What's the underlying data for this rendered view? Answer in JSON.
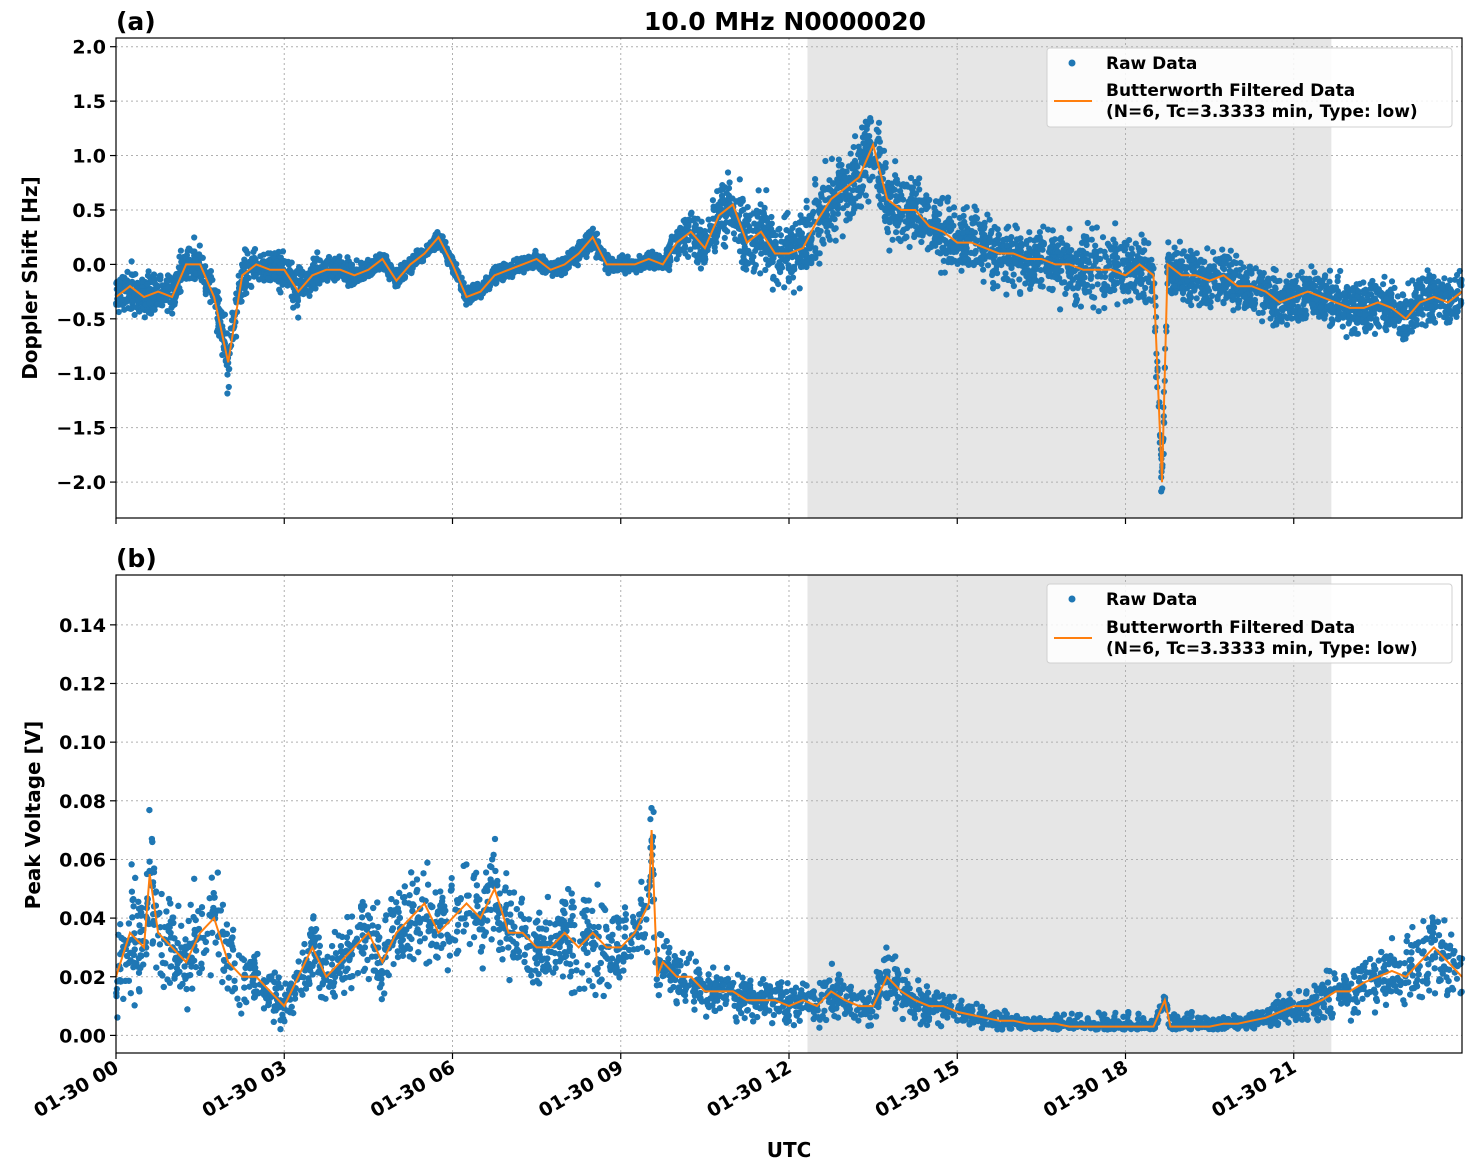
{
  "title": "10.0 MHz N0000020",
  "colors": {
    "raw": "#1f77b4",
    "filtered": "#ff7f0e",
    "shade": "#e6e6e6",
    "grid": "#b0b0b0"
  },
  "legend": {
    "raw_label": "Raw Data",
    "filtered_label_line1": "Butterworth Filtered Data",
    "filtered_label_line2": "(N=6, Tc=3.3333 min, Type: low)"
  },
  "chart_data": [
    {
      "type": "scatter",
      "panel_label": "(a)",
      "ylabel": "Doppler Shift [Hz]",
      "xlabel": "",
      "xlim": [
        0,
        24
      ],
      "ylim": [
        -2.33,
        2.08
      ],
      "yticks": [
        -2.0,
        -1.5,
        -1.0,
        -0.5,
        0.0,
        0.5,
        1.0,
        1.5,
        2.0
      ],
      "ytick_labels": [
        "−2.0",
        "−1.5",
        "−1.0",
        "−0.5",
        "0.0",
        "0.5",
        "1.0",
        "1.5",
        "2.0"
      ],
      "shaded_region": [
        12.33,
        21.67
      ],
      "grid": true,
      "legend_position": "top-right",
      "series": [
        {
          "name": "Butterworth Filtered Data",
          "style": "line",
          "x": [
            0,
            0.25,
            0.5,
            0.75,
            1,
            1.25,
            1.5,
            1.75,
            2,
            2.25,
            2.5,
            2.75,
            3,
            3.25,
            3.5,
            3.75,
            4,
            4.25,
            4.5,
            4.75,
            5,
            5.25,
            5.5,
            5.75,
            6,
            6.25,
            6.5,
            6.75,
            7,
            7.25,
            7.5,
            7.75,
            8,
            8.25,
            8.5,
            8.75,
            9,
            9.25,
            9.5,
            9.75,
            10,
            10.25,
            10.5,
            10.75,
            11,
            11.25,
            11.5,
            11.75,
            12,
            12.25,
            12.5,
            12.75,
            13,
            13.25,
            13.5,
            13.75,
            14,
            14.25,
            14.5,
            14.75,
            15,
            15.25,
            15.5,
            15.75,
            16,
            16.25,
            16.5,
            16.75,
            17,
            17.25,
            17.5,
            17.75,
            18,
            18.25,
            18.5,
            18.65,
            18.75,
            19,
            19.25,
            19.5,
            19.75,
            20,
            20.25,
            20.5,
            20.75,
            21,
            21.25,
            21.5,
            21.75,
            22,
            22.25,
            22.5,
            22.75,
            23,
            23.25,
            23.5,
            23.75,
            24
          ],
          "y": [
            -0.3,
            -0.2,
            -0.3,
            -0.25,
            -0.3,
            0.0,
            0.0,
            -0.3,
            -0.9,
            -0.1,
            0.0,
            -0.05,
            -0.05,
            -0.25,
            -0.1,
            -0.05,
            -0.05,
            -0.1,
            -0.05,
            0.05,
            -0.15,
            0.0,
            0.1,
            0.25,
            0.0,
            -0.3,
            -0.25,
            -0.1,
            -0.05,
            0.0,
            0.05,
            -0.05,
            0.0,
            0.1,
            0.25,
            0.0,
            0.0,
            0.0,
            0.05,
            0.0,
            0.2,
            0.3,
            0.15,
            0.45,
            0.55,
            0.2,
            0.3,
            0.1,
            0.1,
            0.15,
            0.4,
            0.6,
            0.7,
            0.8,
            1.1,
            0.6,
            0.5,
            0.5,
            0.35,
            0.3,
            0.2,
            0.2,
            0.15,
            0.1,
            0.1,
            0.05,
            0.05,
            0.0,
            0.0,
            -0.05,
            -0.05,
            -0.05,
            -0.1,
            0.0,
            -0.1,
            -2.0,
            0.0,
            -0.1,
            -0.1,
            -0.15,
            -0.1,
            -0.2,
            -0.2,
            -0.25,
            -0.35,
            -0.3,
            -0.25,
            -0.3,
            -0.35,
            -0.4,
            -0.4,
            -0.35,
            -0.4,
            -0.5,
            -0.35,
            -0.3,
            -0.35,
            -0.25
          ]
        },
        {
          "name": "Raw Data",
          "style": "points",
          "spread": [
            0.25,
            0.25,
            0.25,
            0.25,
            0.25,
            0.25,
            0.25,
            0.25,
            0.4,
            0.25,
            0.2,
            0.2,
            0.25,
            0.3,
            0.2,
            0.15,
            0.15,
            0.15,
            0.12,
            0.12,
            0.12,
            0.1,
            0.1,
            0.1,
            0.1,
            0.1,
            0.1,
            0.1,
            0.1,
            0.1,
            0.1,
            0.1,
            0.1,
            0.1,
            0.15,
            0.1,
            0.1,
            0.1,
            0.1,
            0.1,
            0.2,
            0.25,
            0.3,
            0.35,
            0.4,
            0.45,
            0.45,
            0.4,
            0.4,
            0.45,
            0.45,
            0.45,
            0.45,
            0.5,
            0.5,
            0.45,
            0.45,
            0.4,
            0.4,
            0.4,
            0.4,
            0.4,
            0.4,
            0.4,
            0.4,
            0.4,
            0.4,
            0.4,
            0.4,
            0.45,
            0.45,
            0.45,
            0.45,
            0.4,
            0.4,
            0.4,
            0.4,
            0.35,
            0.35,
            0.35,
            0.35,
            0.3,
            0.3,
            0.3,
            0.3,
            0.3,
            0.3,
            0.3,
            0.3,
            0.35,
            0.35,
            0.35,
            0.35,
            0.35,
            0.3,
            0.3,
            0.3,
            0.3
          ]
        }
      ]
    },
    {
      "type": "scatter",
      "panel_label": "(b)",
      "ylabel": "Peak Voltage [V]",
      "xlabel": "UTC",
      "xlim": [
        0,
        24
      ],
      "ylim": [
        -0.006,
        0.157
      ],
      "yticks": [
        0.0,
        0.02,
        0.04,
        0.06,
        0.08,
        0.1,
        0.12,
        0.14
      ],
      "ytick_labels": [
        "0.00",
        "0.02",
        "0.04",
        "0.06",
        "0.08",
        "0.10",
        "0.12",
        "0.14"
      ],
      "xticks": [
        0,
        3,
        6,
        9,
        12,
        15,
        18,
        21
      ],
      "xtick_labels": [
        "01-30 00",
        "01-30 03",
        "01-30 06",
        "01-30 09",
        "01-30 12",
        "01-30 15",
        "01-30 18",
        "01-30 21"
      ],
      "shaded_region": [
        12.33,
        21.67
      ],
      "grid": true,
      "legend_position": "top-right",
      "series": [
        {
          "name": "Butterworth Filtered Data",
          "style": "line",
          "x": [
            0,
            0.25,
            0.5,
            0.6,
            0.75,
            1,
            1.25,
            1.5,
            1.75,
            2,
            2.25,
            2.5,
            2.75,
            3,
            3.25,
            3.5,
            3.75,
            4,
            4.25,
            4.5,
            4.75,
            5,
            5.25,
            5.5,
            5.75,
            6,
            6.25,
            6.5,
            6.75,
            7,
            7.25,
            7.5,
            7.75,
            8,
            8.25,
            8.5,
            8.75,
            9,
            9.25,
            9.5,
            9.55,
            9.65,
            9.75,
            10,
            10.25,
            10.5,
            10.75,
            11,
            11.25,
            11.5,
            11.75,
            12,
            12.25,
            12.5,
            12.75,
            13,
            13.25,
            13.5,
            13.75,
            14,
            14.25,
            14.5,
            14.75,
            15,
            15.25,
            15.5,
            15.75,
            16,
            16.25,
            16.5,
            16.75,
            17,
            17.25,
            17.5,
            17.75,
            18,
            18.25,
            18.5,
            18.7,
            18.8,
            19,
            19.25,
            19.5,
            19.75,
            20,
            20.25,
            20.5,
            20.75,
            21,
            21.25,
            21.5,
            21.75,
            22,
            22.25,
            22.5,
            22.75,
            23,
            23.25,
            23.5,
            23.75,
            24
          ],
          "y": [
            0.02,
            0.035,
            0.03,
            0.055,
            0.035,
            0.03,
            0.025,
            0.035,
            0.04,
            0.025,
            0.02,
            0.02,
            0.015,
            0.01,
            0.02,
            0.03,
            0.02,
            0.025,
            0.03,
            0.035,
            0.025,
            0.035,
            0.04,
            0.045,
            0.035,
            0.04,
            0.045,
            0.04,
            0.05,
            0.035,
            0.035,
            0.03,
            0.03,
            0.035,
            0.03,
            0.035,
            0.03,
            0.03,
            0.035,
            0.045,
            0.07,
            0.02,
            0.025,
            0.02,
            0.02,
            0.015,
            0.015,
            0.015,
            0.012,
            0.012,
            0.012,
            0.01,
            0.012,
            0.01,
            0.015,
            0.012,
            0.01,
            0.01,
            0.02,
            0.015,
            0.012,
            0.01,
            0.01,
            0.008,
            0.007,
            0.006,
            0.005,
            0.005,
            0.004,
            0.004,
            0.004,
            0.003,
            0.003,
            0.003,
            0.003,
            0.003,
            0.003,
            0.003,
            0.012,
            0.003,
            0.003,
            0.003,
            0.003,
            0.004,
            0.004,
            0.005,
            0.006,
            0.008,
            0.01,
            0.01,
            0.012,
            0.015,
            0.015,
            0.018,
            0.02,
            0.022,
            0.02,
            0.025,
            0.03,
            0.025,
            0.02
          ]
        },
        {
          "name": "Raw Data",
          "style": "points",
          "spread": [
            0.02,
            0.025,
            0.025,
            0.03,
            0.025,
            0.02,
            0.02,
            0.025,
            0.03,
            0.02,
            0.015,
            0.015,
            0.012,
            0.01,
            0.012,
            0.015,
            0.015,
            0.015,
            0.02,
            0.02,
            0.02,
            0.02,
            0.02,
            0.025,
            0.02,
            0.02,
            0.02,
            0.02,
            0.025,
            0.02,
            0.02,
            0.018,
            0.018,
            0.02,
            0.02,
            0.02,
            0.02,
            0.02,
            0.02,
            0.025,
            0.04,
            0.015,
            0.015,
            0.012,
            0.012,
            0.01,
            0.01,
            0.01,
            0.01,
            0.01,
            0.01,
            0.008,
            0.008,
            0.008,
            0.012,
            0.01,
            0.008,
            0.008,
            0.012,
            0.01,
            0.008,
            0.008,
            0.007,
            0.006,
            0.005,
            0.004,
            0.004,
            0.004,
            0.003,
            0.003,
            0.003,
            0.003,
            0.003,
            0.003,
            0.003,
            0.003,
            0.003,
            0.003,
            0.006,
            0.003,
            0.003,
            0.003,
            0.003,
            0.003,
            0.003,
            0.004,
            0.005,
            0.006,
            0.007,
            0.008,
            0.01,
            0.012,
            0.012,
            0.014,
            0.015,
            0.016,
            0.016,
            0.018,
            0.02,
            0.018,
            0.016
          ]
        }
      ]
    }
  ]
}
